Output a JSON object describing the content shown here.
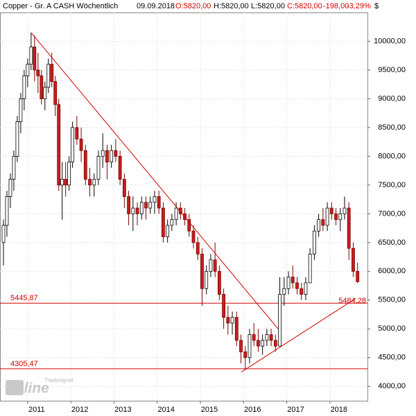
{
  "chart_data": {
    "type": "candlestick",
    "title": "Copper - Gr. A CASH Wöchentlich",
    "date": "09.09.2018",
    "quote": {
      "open": "O:5820,00",
      "high": "H:5820,00",
      "low": "L:5820,00",
      "close": "C:5820,00",
      "change": "-198,00",
      "change_pct": "-3,29%"
    },
    "unit": "$",
    "watermark": {
      "brand": "online",
      "vendor": "Tradesignal"
    },
    "up_color": "#ffffff",
    "down_color": "#c81e1e",
    "grid": true,
    "xlim": [
      2010.36,
      2018.87
    ],
    "xticks": [
      2011,
      2012,
      2013,
      2014,
      2015,
      2016,
      2017,
      2018
    ],
    "ylim": [
      3750,
      10500
    ],
    "yticks": [
      {
        "value": 4000,
        "label": "4000,00"
      },
      {
        "value": 4500,
        "label": "4500,00"
      },
      {
        "value": 5000,
        "label": "5000,00"
      },
      {
        "value": 5500,
        "label": "5500,00"
      },
      {
        "value": 6000,
        "label": "6000,00"
      },
      {
        "value": 6500,
        "label": "6500,00"
      },
      {
        "value": 7000,
        "label": "7000,00"
      },
      {
        "value": 7500,
        "label": "7500,00"
      },
      {
        "value": 8000,
        "label": "8000,00"
      },
      {
        "value": 8500,
        "label": "8500,00"
      },
      {
        "value": 9000,
        "label": "9000,00"
      },
      {
        "value": 9500,
        "label": "9500,00"
      },
      {
        "value": 10000,
        "label": "10000,00"
      }
    ],
    "levels": [
      {
        "value": 5445.87,
        "label": "5445,87"
      },
      {
        "value": 4305.47,
        "label": "4305,47"
      }
    ],
    "trendlines": [
      {
        "x": [
          2011.08,
          2016.8
        ],
        "y": [
          10150,
          5000
        ]
      },
      {
        "x": [
          2015.95,
          2018.6
        ],
        "y": [
          4250,
          5530
        ],
        "end_value": 5484.28,
        "end_label": "5484,28"
      }
    ],
    "x": [
      2010.44,
      2010.52,
      2010.6,
      2010.68,
      2010.76,
      2010.84,
      2010.92,
      2011.0,
      2011.08,
      2011.16,
      2011.24,
      2011.32,
      2011.4,
      2011.48,
      2011.56,
      2011.64,
      2011.72,
      2011.8,
      2011.88,
      2011.96,
      2012.04,
      2012.14,
      2012.24,
      2012.34,
      2012.44,
      2012.54,
      2012.64,
      2012.74,
      2012.84,
      2012.94,
      2013.04,
      2013.14,
      2013.24,
      2013.34,
      2013.44,
      2013.54,
      2013.64,
      2013.74,
      2013.84,
      2013.94,
      2014.04,
      2014.14,
      2014.24,
      2014.34,
      2014.44,
      2014.54,
      2014.64,
      2014.74,
      2014.84,
      2014.94,
      2015.04,
      2015.14,
      2015.24,
      2015.34,
      2015.44,
      2015.54,
      2015.64,
      2015.74,
      2015.84,
      2015.94,
      2016.04,
      2016.14,
      2016.24,
      2016.34,
      2016.44,
      2016.54,
      2016.64,
      2016.74,
      2016.84,
      2016.94,
      2017.04,
      2017.14,
      2017.24,
      2017.34,
      2017.44,
      2017.54,
      2017.64,
      2017.74,
      2017.84,
      2017.94,
      2018.04,
      2018.14,
      2018.24,
      2018.34,
      2018.44,
      2018.54,
      2018.64
    ],
    "open": [
      6500,
      6800,
      7300,
      7600,
      8000,
      8600,
      9000,
      9400,
      9600,
      9900,
      9500,
      9400,
      9000,
      9200,
      9600,
      9300,
      8900,
      7500,
      7600,
      7500,
      7900,
      8500,
      8300,
      8100,
      7600,
      7500,
      7600,
      8000,
      8100,
      7900,
      8100,
      8000,
      7600,
      7300,
      7000,
      7100,
      7000,
      7200,
      7100,
      7200,
      7300,
      7100,
      6600,
      6800,
      6900,
      7100,
      7000,
      6900,
      6700,
      6500,
      6300,
      5700,
      6000,
      6200,
      6000,
      5600,
      5200,
      5100,
      5200,
      4800,
      4600,
      4500,
      4900,
      4800,
      4700,
      4800,
      4900,
      4800,
      4700,
      5600,
      5700,
      5900,
      5800,
      5700,
      5600,
      5800,
      6300,
      6700,
      6900,
      6800,
      7100,
      7000,
      6900,
      7000,
      7100,
      6400,
      6000
    ],
    "high": [
      6900,
      7400,
      7700,
      8100,
      8700,
      9100,
      9500,
      9700,
      10150,
      10100,
      9800,
      9500,
      9300,
      9700,
      9800,
      9400,
      9000,
      7900,
      7900,
      8000,
      8600,
      8700,
      8500,
      8200,
      7800,
      7700,
      8100,
      8400,
      8200,
      8200,
      8300,
      8100,
      7700,
      7400,
      7300,
      7200,
      7300,
      7300,
      7300,
      7400,
      7400,
      7200,
      6900,
      7000,
      7200,
      7200,
      7100,
      7000,
      6800,
      6600,
      6400,
      6100,
      6300,
      6500,
      6100,
      5700,
      5400,
      5300,
      5300,
      4900,
      4700,
      5000,
      5100,
      5000,
      4900,
      5000,
      5000,
      4900,
      5900,
      5900,
      6000,
      6100,
      5900,
      5800,
      5900,
      6400,
      6800,
      7000,
      7100,
      7200,
      7200,
      7100,
      7100,
      7300,
      7200,
      6500,
      6150
    ],
    "low": [
      6100,
      6600,
      7100,
      7400,
      7900,
      8400,
      8800,
      9200,
      9500,
      9300,
      9100,
      8900,
      8800,
      9100,
      9200,
      8700,
      7400,
      6900,
      7300,
      7400,
      7800,
      8200,
      7900,
      7500,
      7300,
      7300,
      7500,
      7800,
      7600,
      7800,
      7900,
      7500,
      7100,
      6800,
      6700,
      6800,
      6900,
      6900,
      7000,
      7000,
      7000,
      6500,
      6500,
      6700,
      6800,
      6900,
      6800,
      6600,
      6400,
      6200,
      5400,
      5600,
      5900,
      5900,
      5500,
      5000,
      4900,
      4900,
      4700,
      4400,
      4300,
      4400,
      4700,
      4600,
      4550,
      4700,
      4700,
      4600,
      4700,
      5400,
      5600,
      5700,
      5600,
      5500,
      5500,
      5800,
      6200,
      6600,
      6700,
      6700,
      6900,
      6800,
      6700,
      6900,
      6200,
      5900,
      5800
    ],
    "close": [
      6800,
      7300,
      7600,
      8000,
      8600,
      9000,
      9400,
      9600,
      9900,
      9500,
      9400,
      9000,
      9200,
      9600,
      9300,
      8900,
      7500,
      7600,
      7500,
      7900,
      8500,
      8300,
      8100,
      7600,
      7500,
      7600,
      8000,
      8100,
      7900,
      8100,
      8000,
      7600,
      7300,
      7000,
      7100,
      7000,
      7200,
      7100,
      7200,
      7300,
      7100,
      6600,
      6800,
      6900,
      7100,
      7000,
      6900,
      6700,
      6500,
      6300,
      5700,
      6000,
      6200,
      6000,
      5600,
      5200,
      5100,
      5200,
      4800,
      4600,
      4500,
      4900,
      4800,
      4700,
      4800,
      4900,
      4800,
      4700,
      5600,
      5700,
      5900,
      5800,
      5700,
      5600,
      5800,
      6300,
      6700,
      6900,
      6800,
      7100,
      7000,
      6900,
      7000,
      7100,
      6400,
      6000,
      5820
    ]
  }
}
